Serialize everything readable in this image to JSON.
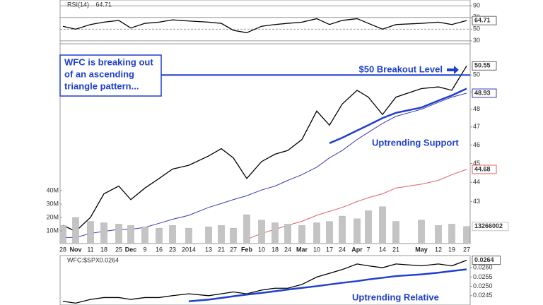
{
  "chart_data": [
    {
      "type": "line",
      "series": [
        {
          "name": "RSI(14)",
          "color": "#000000",
          "values": [
            55,
            50,
            58,
            62,
            65,
            52,
            60,
            62,
            66,
            64,
            62,
            60,
            48,
            44,
            55,
            58,
            60,
            62,
            68,
            58,
            65,
            68,
            60,
            50,
            58,
            60,
            62,
            58,
            64.71
          ],
          "last_value_box": true
        }
      ],
      "ylim": [
        25,
        100
      ],
      "yticks": [
        90,
        70,
        50,
        30
      ],
      "grid": true
    },
    {
      "type": "line",
      "log_scale": true,
      "categories": [
        "28",
        "Nov",
        "11",
        "18",
        "25",
        "Dec",
        "9",
        "16",
        "23",
        "2014",
        "13",
        "21",
        "27",
        "Feb",
        "10",
        "18",
        "24",
        "Mar",
        "10",
        "17",
        "24",
        "Apr",
        "7",
        "14",
        "21",
        "May",
        "12",
        "19",
        "27"
      ],
      "series": [
        {
          "color": "#000000",
          "last_value_box": true,
          "values": [
            41.8,
            41.5,
            42.2,
            43.4,
            43.8,
            43.1,
            43.7,
            44.2,
            44.7,
            44.9,
            45.4,
            45.8,
            45.3,
            44.2,
            45.1,
            45.5,
            45.7,
            46.3,
            47.9,
            47.1,
            48.3,
            49.1,
            48.7,
            47.7,
            48.7,
            49.2,
            49.3,
            49.1,
            50.55
          ]
        },
        {
          "color": "#3b3bb3",
          "last_value_box": true,
          "values": [
            41.2,
            41.2,
            41.4,
            41.5,
            41.6,
            41.6,
            41.7,
            41.9,
            42.1,
            42.3,
            42.7,
            42.9,
            43.1,
            43.3,
            43.6,
            43.8,
            44.1,
            44.4,
            44.8,
            45.3,
            45.7,
            46.3,
            46.7,
            47.2,
            47.6,
            48.0,
            48.4,
            48.7,
            48.93
          ]
        },
        {
          "color": "#e06060",
          "last_value_box": true,
          "values": [
            null,
            null,
            null,
            null,
            null,
            null,
            null,
            null,
            null,
            null,
            null,
            null,
            null,
            41.1,
            41.4,
            41.6,
            41.8,
            42.0,
            42.3,
            42.5,
            42.7,
            43.0,
            43.2,
            43.4,
            43.7,
            43.9,
            44.1,
            44.4,
            44.68
          ]
        },
        {
          "type": "bar",
          "axis": "y2",
          "color": "#c4c4c4",
          "last_value_box": true,
          "values": [
            14,
            20,
            17,
            16,
            15,
            14,
            13,
            12,
            14,
            12,
            13,
            14,
            12,
            22,
            18,
            16,
            15,
            14,
            16,
            17,
            21,
            19,
            25,
            28,
            17,
            18,
            14,
            15,
            13.266002
          ],
          "value_labels": [
            null,
            null,
            null,
            null,
            null,
            null,
            null,
            null,
            null,
            null,
            null,
            null,
            null,
            null,
            null,
            null,
            null,
            null,
            null,
            null,
            null,
            null,
            null,
            null,
            null,
            null,
            null,
            null,
            "13266002"
          ]
        }
      ],
      "ylim": [
        40.9,
        51.9
      ],
      "yticks": [
        50,
        49,
        48,
        47,
        46,
        45,
        44,
        43
      ],
      "y2lim": [
        0,
        40
      ],
      "y2ticks": [
        {
          "value": 40,
          "label": "40M"
        },
        {
          "value": 30,
          "label": "30M"
        },
        {
          "value": 20,
          "label": "20M"
        },
        {
          "value": 10,
          "label": "10M"
        }
      ],
      "hlines": [
        {
          "value": 50,
          "color": "#1f3fcc"
        }
      ],
      "trendlines": [
        {
          "color": "#1f3fcc",
          "values": [
            null,
            null,
            null,
            null,
            null,
            null,
            null,
            null,
            null,
            null,
            null,
            null,
            null,
            null,
            null,
            null,
            null,
            null,
            null,
            46.1,
            46.4,
            46.8,
            47.1,
            47.5,
            47.8,
            48.1,
            48.5,
            48.8,
            49.2
          ]
        }
      ],
      "annotations": {
        "callout": [
          "WFC is breaking out",
          "of an ascending",
          "triangle pattern..."
        ],
        "breakout": "$50 Breakout Level",
        "support": "Uptrending Support"
      }
    },
    {
      "type": "line",
      "series": [
        {
          "name": "WFC:$SPX",
          "color": "#000000",
          "last_value_box": true,
          "values": [
            0.0242,
            0.0241,
            0.0243,
            0.0244,
            0.0244,
            0.0243,
            0.0244,
            0.0244,
            0.0245,
            0.0246,
            0.0245,
            0.0246,
            0.0247,
            0.0246,
            0.0248,
            0.0249,
            0.0249,
            0.0251,
            0.0255,
            0.0257,
            0.0259,
            0.0262,
            0.0261,
            0.026,
            0.0262,
            0.0261,
            0.0262,
            0.0261,
            0.0264
          ]
        }
      ],
      "ylim": [
        0.024,
        0.02665
      ],
      "yticks": [
        {
          "value": 0.026,
          "label": "0.0260"
        },
        0.0255,
        {
          "value": 0.025,
          "label": "0.0250"
        },
        0.0245
      ],
      "trendlines": [
        {
          "color": "#1f3fcc",
          "values": [
            null,
            null,
            null,
            null,
            null,
            null,
            null,
            null,
            null,
            0.0242,
            0.02429,
            0.02438,
            0.02447,
            0.02456,
            0.02465,
            0.02474,
            0.02483,
            0.02492,
            0.02501,
            0.0251,
            0.02519,
            0.02528,
            0.02537,
            0.02546,
            0.02555,
            0.02564,
            0.02573,
            0.02582,
            0.02591
          ]
        }
      ],
      "annotations": {
        "relative": "Uptrending Relative"
      }
    }
  ]
}
